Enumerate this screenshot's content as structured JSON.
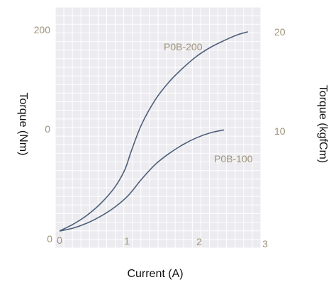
{
  "chart_data": {
    "type": "line",
    "title": "",
    "xlabel": "Current (A)",
    "ylabel_left": "Torque (Nm)",
    "ylabel_right": "Torque (kgfCm)",
    "xlim": [
      0,
      3
    ],
    "ylim_left": [
      0,
      200
    ],
    "ylim_right": [
      0,
      20
    ],
    "x_ticks": [
      "0",
      "1",
      "2",
      "3"
    ],
    "y_ticks_left": [
      "0",
      "0",
      "200"
    ],
    "y_ticks_right": [
      "10",
      "20"
    ],
    "grid": true,
    "colors": {
      "line": "#4d5f7a",
      "grid_bg": "#ececf0",
      "grid_line": "#ffffff",
      "tick_text": "#9e9277",
      "axis_title": "#111111"
    },
    "series": [
      {
        "name": "P0B-200",
        "x": [
          0,
          0.2,
          0.4,
          0.6,
          0.8,
          0.95,
          1.05,
          1.2,
          1.4,
          1.6,
          1.8,
          2.0,
          2.2,
          2.4,
          2.6,
          2.75
        ],
        "y": [
          0,
          7,
          16,
          28,
          44,
          62,
          82,
          109,
          134,
          152,
          166,
          178,
          187,
          194,
          200,
          203
        ]
      },
      {
        "name": "P0B-100",
        "x": [
          0,
          0.2,
          0.4,
          0.6,
          0.8,
          1.0,
          1.2,
          1.4,
          1.6,
          1.8,
          2.0,
          2.2,
          2.4
        ],
        "y": [
          0,
          3,
          8,
          15,
          24,
          36,
          53,
          68,
          79,
          88,
          95,
          100,
          103
        ]
      }
    ]
  }
}
